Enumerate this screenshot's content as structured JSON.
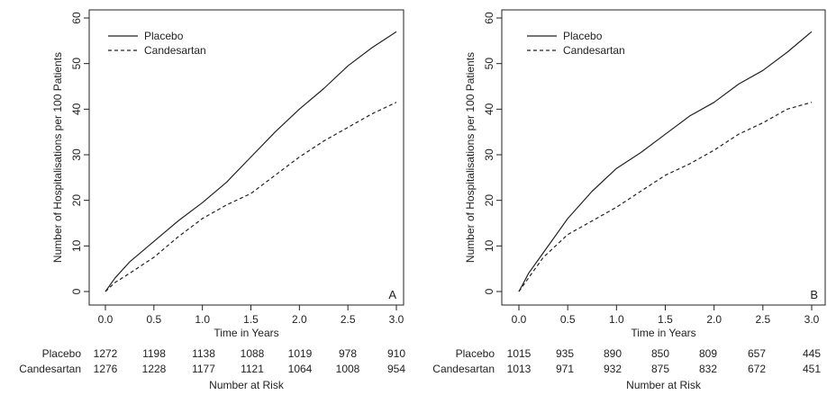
{
  "chart_data": [
    {
      "type": "line",
      "panel_label": "A",
      "xlabel": "Time in Years",
      "ylabel": "Number of Hospitalisations per 100 Patients",
      "xlim": [
        0,
        3
      ],
      "ylim": [
        0,
        60
      ],
      "x_ticks": [
        "0.0",
        "0.5",
        "1.0",
        "1.5",
        "2.0",
        "2.5",
        "3.0"
      ],
      "y_ticks": [
        "0",
        "10",
        "20",
        "30",
        "40",
        "50",
        "60"
      ],
      "grid": false,
      "legend": "top-left",
      "series": [
        {
          "name": "Placebo",
          "style": "solid",
          "x": [
            0,
            0.1,
            0.25,
            0.5,
            0.75,
            1.0,
            1.25,
            1.5,
            1.75,
            2.0,
            2.25,
            2.5,
            2.75,
            3.0
          ],
          "y": [
            0,
            3,
            6.5,
            11,
            15.5,
            19.5,
            24,
            29.5,
            35,
            40,
            44.5,
            49.5,
            53.5,
            57
          ]
        },
        {
          "name": "Candesartan",
          "style": "dashed",
          "x": [
            0,
            0.1,
            0.25,
            0.5,
            0.75,
            1.0,
            1.25,
            1.5,
            1.75,
            2.0,
            2.25,
            2.5,
            2.75,
            3.0
          ],
          "y": [
            0,
            2,
            4,
            7.5,
            12,
            16,
            19,
            21.5,
            25.5,
            29.5,
            33,
            36,
            39,
            41.5
          ]
        }
      ],
      "risk_table": {
        "title": "Number at Risk",
        "columns": [
          "0.0",
          "0.5",
          "1.0",
          "1.5",
          "2.0",
          "2.5",
          "3.0"
        ],
        "rows": [
          {
            "label": "Placebo",
            "values": [
              "1272",
              "1198",
              "1138",
              "1088",
              "1019",
              "978",
              "910"
            ]
          },
          {
            "label": "Candesartan",
            "values": [
              "1276",
              "1228",
              "1177",
              "1121",
              "1064",
              "1008",
              "954"
            ]
          }
        ]
      }
    },
    {
      "type": "line",
      "panel_label": "B",
      "xlabel": "Time in Years",
      "ylabel": "Number of Hospitalisations per 100 Patients",
      "xlim": [
        0,
        3
      ],
      "ylim": [
        0,
        60
      ],
      "x_ticks": [
        "0.0",
        "0.5",
        "1.0",
        "1.5",
        "2.0",
        "2.5",
        "3.0"
      ],
      "y_ticks": [
        "0",
        "10",
        "20",
        "30",
        "40",
        "50",
        "60"
      ],
      "grid": false,
      "legend": "top-left",
      "series": [
        {
          "name": "Placebo",
          "style": "solid",
          "x": [
            0,
            0.05,
            0.1,
            0.25,
            0.5,
            0.75,
            1.0,
            1.25,
            1.5,
            1.75,
            2.0,
            2.25,
            2.5,
            2.75,
            3.0
          ],
          "y": [
            0,
            2,
            4,
            8.5,
            16,
            22,
            27,
            30.5,
            34.5,
            38.5,
            41.5,
            45.5,
            48.5,
            52.5,
            57
          ]
        },
        {
          "name": "Candesartan",
          "style": "dashed",
          "x": [
            0,
            0.05,
            0.1,
            0.25,
            0.5,
            0.75,
            1.0,
            1.25,
            1.5,
            1.75,
            2.0,
            2.25,
            2.5,
            2.75,
            3.0
          ],
          "y": [
            0,
            1.5,
            3,
            7.5,
            12.5,
            15.5,
            18.5,
            22,
            25.5,
            28,
            31,
            34.5,
            37,
            40,
            41.5
          ]
        }
      ],
      "risk_table": {
        "title": "Number at Risk",
        "columns": [
          "0.0",
          "0.5",
          "1.0",
          "1.5",
          "2.0",
          "2.5",
          "3.0"
        ],
        "rows": [
          {
            "label": "Placebo",
            "values": [
              "1015",
              "935",
              "890",
              "850",
              "809",
              "657",
              "445"
            ]
          },
          {
            "label": "Candesartan",
            "values": [
              "1013",
              "971",
              "932",
              "875",
              "832",
              "672",
              "451"
            ]
          }
        ]
      }
    }
  ]
}
